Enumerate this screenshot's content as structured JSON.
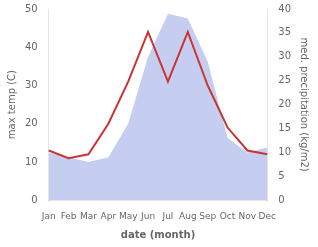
{
  "chart_data": {
    "type": "line",
    "categories": [
      "Jan",
      "Feb",
      "Mar",
      "Apr",
      "May",
      "Jun",
      "Jul",
      "Aug",
      "Sep",
      "Oct",
      "Nov",
      "Dec"
    ],
    "xlabel": "date (month)",
    "ylabel": "max temp (C)",
    "y2label": "med. precipitation (kg/m2)",
    "series": [
      {
        "type": "area",
        "axis": "y2",
        "color": "#c5cdf0",
        "values": [
          10,
          9,
          8,
          9,
          16,
          30,
          39,
          38,
          29,
          13,
          10,
          11
        ]
      },
      {
        "type": "line",
        "color": "#cc3333",
        "values": [
          13,
          11,
          12,
          20,
          31,
          44,
          31,
          44,
          30,
          19,
          13,
          12
        ]
      }
    ],
    "ylim": [
      0,
      50
    ],
    "yticks": [
      0,
      10,
      20,
      30,
      40,
      50
    ],
    "y2lim": [
      0,
      40
    ],
    "y2ticks": [
      0,
      5,
      10,
      15,
      20,
      25,
      30,
      35,
      40
    ],
    "grid": false
  }
}
